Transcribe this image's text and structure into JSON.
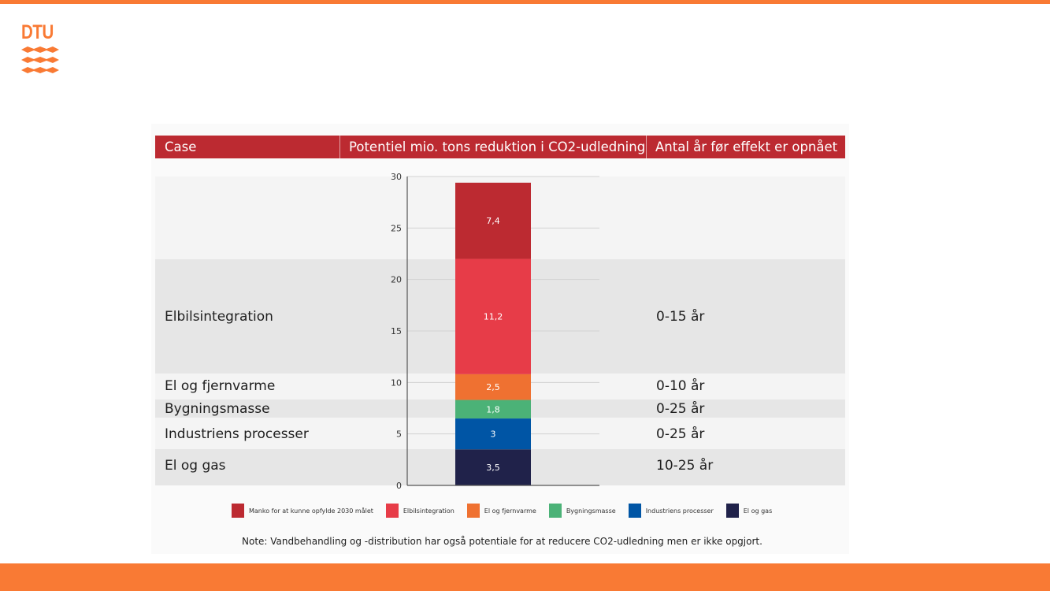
{
  "logo": {
    "text": "DTU",
    "color": "#f97a34"
  },
  "header": {
    "case": "Case",
    "potential": "Potentiel mio. tons reduktion i CO2-udledning",
    "years": "Antal år før effekt er opnået"
  },
  "rows": [
    {
      "case": "Elbilsintegration",
      "years": "0-15 år"
    },
    {
      "case": "El og fjernvarme",
      "years": "0-10 år"
    },
    {
      "case": "Bygningsmasse",
      "years": "0-25 år"
    },
    {
      "case": "Industriens processer",
      "years": "0-25 år"
    },
    {
      "case": "El og gas",
      "years": "10-25 år"
    }
  ],
  "note": "Note: Vandbehandling og -distribution har også potentiale for at reducere CO2-udledning men er ikke opgjort.",
  "chart_data": {
    "type": "bar",
    "stacked": true,
    "orientation": "vertical",
    "categories": [
      ""
    ],
    "ylim": [
      0,
      30
    ],
    "yticks": [
      0,
      5,
      10,
      15,
      20,
      25,
      30
    ],
    "grid": true,
    "legend_position": "bottom",
    "series": [
      {
        "name": "El og gas",
        "values": [
          3.5
        ],
        "label": "3,5",
        "color": "#20224a"
      },
      {
        "name": "Industriens processer",
        "values": [
          3
        ],
        "label": "3",
        "color": "#0055a5"
      },
      {
        "name": "Bygningsmasse",
        "values": [
          1.8
        ],
        "label": "1,8",
        "color": "#4bb277"
      },
      {
        "name": "El og fjernvarme",
        "values": [
          2.5
        ],
        "label": "2,5",
        "color": "#ef7131"
      },
      {
        "name": "Elbilsintegration",
        "values": [
          11.2
        ],
        "label": "11,2",
        "color": "#e73c48"
      },
      {
        "name": "Manko for at kunne opfylde 2030 målet",
        "values": [
          7.4
        ],
        "label": "7,4",
        "color": "#bc2a31"
      }
    ],
    "legend_order": [
      "Manko for at kunne opfylde 2030 målet",
      "Elbilsintegration",
      "El og fjernvarme",
      "Bygningsmasse",
      "Industriens processer",
      "El og gas"
    ]
  }
}
